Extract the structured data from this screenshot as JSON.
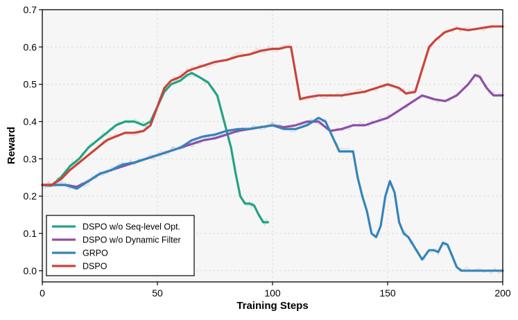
{
  "chart_data": {
    "type": "line",
    "title": "",
    "xlabel": "Training Steps",
    "ylabel": "Reward",
    "xlim": [
      0,
      200
    ],
    "ylim": [
      -0.03,
      0.7
    ],
    "xticks": [
      0,
      50,
      100,
      150,
      200
    ],
    "yticks": [
      0.0,
      0.1,
      0.2,
      0.3,
      0.4,
      0.5,
      0.6,
      0.7
    ],
    "ytick_labels": [
      "0.0",
      "0.1",
      "0.2",
      "0.3",
      "0.4",
      "0.5",
      "0.6",
      "0.7"
    ],
    "grid": true,
    "legend_position": "bottom-left",
    "series": [
      {
        "name": "DSPO w/o Seq-level Opt.",
        "color": "#22a384",
        "x": [
          0,
          4,
          8,
          12,
          16,
          20,
          24,
          28,
          32,
          36,
          40,
          44,
          47,
          50,
          53,
          56,
          60,
          63,
          65,
          68,
          72,
          76,
          79,
          82,
          84,
          86,
          88,
          90,
          92,
          94,
          96,
          98
        ],
        "values": [
          0.23,
          0.228,
          0.25,
          0.28,
          0.3,
          0.33,
          0.35,
          0.37,
          0.39,
          0.4,
          0.4,
          0.39,
          0.4,
          0.44,
          0.48,
          0.5,
          0.51,
          0.525,
          0.53,
          0.52,
          0.505,
          0.47,
          0.4,
          0.33,
          0.26,
          0.2,
          0.18,
          0.18,
          0.175,
          0.15,
          0.13,
          0.13
        ]
      },
      {
        "name": "DSPO w/o Dynamic Filter",
        "color": "#8e4fa8",
        "x": [
          0,
          5,
          10,
          15,
          20,
          25,
          30,
          35,
          40,
          45,
          50,
          55,
          60,
          65,
          70,
          75,
          80,
          85,
          90,
          95,
          100,
          105,
          110,
          115,
          120,
          125,
          130,
          135,
          140,
          145,
          150,
          155,
          160,
          165,
          170,
          175,
          180,
          185,
          188,
          190,
          193,
          196,
          200
        ],
        "values": [
          0.23,
          0.23,
          0.23,
          0.225,
          0.24,
          0.26,
          0.27,
          0.28,
          0.29,
          0.3,
          0.31,
          0.32,
          0.33,
          0.34,
          0.35,
          0.355,
          0.365,
          0.375,
          0.38,
          0.385,
          0.39,
          0.385,
          0.39,
          0.4,
          0.4,
          0.375,
          0.38,
          0.39,
          0.39,
          0.4,
          0.41,
          0.43,
          0.45,
          0.47,
          0.46,
          0.455,
          0.47,
          0.5,
          0.525,
          0.52,
          0.49,
          0.47,
          0.47
        ]
      },
      {
        "name": "GRPO",
        "color": "#3584b8",
        "x": [
          0,
          5,
          10,
          15,
          20,
          25,
          30,
          35,
          40,
          45,
          50,
          55,
          60,
          65,
          70,
          75,
          80,
          85,
          90,
          95,
          100,
          105,
          110,
          115,
          120,
          123,
          126,
          129,
          132,
          135,
          137,
          139,
          141,
          143,
          145,
          147,
          149,
          151,
          153,
          155,
          157,
          159,
          162,
          165,
          168,
          170,
          172,
          174,
          176,
          178,
          180,
          182,
          185,
          190,
          195,
          200
        ],
        "values": [
          0.23,
          0.23,
          0.23,
          0.22,
          0.24,
          0.26,
          0.27,
          0.285,
          0.29,
          0.3,
          0.31,
          0.32,
          0.33,
          0.35,
          0.36,
          0.365,
          0.375,
          0.38,
          0.38,
          0.385,
          0.39,
          0.38,
          0.38,
          0.39,
          0.41,
          0.4,
          0.36,
          0.32,
          0.32,
          0.32,
          0.25,
          0.2,
          0.16,
          0.1,
          0.09,
          0.12,
          0.2,
          0.24,
          0.21,
          0.13,
          0.1,
          0.09,
          0.06,
          0.03,
          0.055,
          0.055,
          0.05,
          0.075,
          0.07,
          0.04,
          0.01,
          0.0,
          0.0,
          0.0,
          0.0,
          0.0
        ]
      },
      {
        "name": "DSPO",
        "color": "#c8443a",
        "x": [
          0,
          4,
          8,
          12,
          16,
          20,
          24,
          28,
          32,
          36,
          40,
          44,
          47,
          50,
          53,
          56,
          60,
          63,
          65,
          70,
          75,
          80,
          85,
          90,
          95,
          100,
          103,
          106,
          108,
          110,
          112,
          115,
          120,
          125,
          130,
          135,
          140,
          145,
          150,
          155,
          158,
          162,
          165,
          168,
          171,
          175,
          180,
          185,
          190,
          195,
          200
        ],
        "values": [
          0.23,
          0.23,
          0.245,
          0.27,
          0.29,
          0.31,
          0.33,
          0.35,
          0.36,
          0.37,
          0.37,
          0.375,
          0.39,
          0.44,
          0.49,
          0.51,
          0.52,
          0.535,
          0.54,
          0.55,
          0.56,
          0.565,
          0.575,
          0.58,
          0.59,
          0.595,
          0.595,
          0.6,
          0.6,
          0.53,
          0.46,
          0.465,
          0.47,
          0.47,
          0.47,
          0.475,
          0.48,
          0.49,
          0.5,
          0.49,
          0.475,
          0.48,
          0.54,
          0.6,
          0.62,
          0.64,
          0.65,
          0.645,
          0.65,
          0.655,
          0.655
        ]
      }
    ]
  }
}
